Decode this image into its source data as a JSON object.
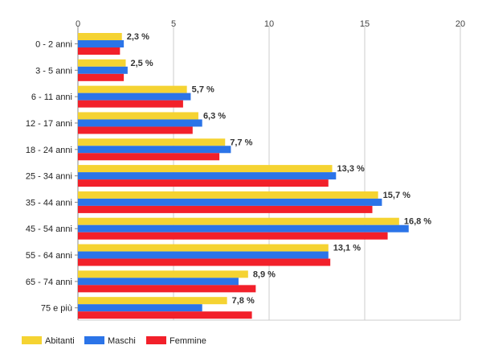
{
  "chart_data": {
    "type": "bar",
    "orientation": "horizontal",
    "categories": [
      "0 - 2 anni",
      "3 - 5 anni",
      "6 - 11 anni",
      "12 - 17 anni",
      "18 - 24 anni",
      "25 - 34 anni",
      "35 - 44 anni",
      "45 - 54 anni",
      "55 - 64 anni",
      "65 - 74 anni",
      "75 e più"
    ],
    "series": [
      {
        "name": "Abitanti",
        "color": "#f5d332",
        "values": [
          2.3,
          2.5,
          5.7,
          6.3,
          7.7,
          13.3,
          15.7,
          16.8,
          13.1,
          8.9,
          7.8
        ]
      },
      {
        "name": "Maschi",
        "color": "#2b74e8",
        "values": [
          2.4,
          2.6,
          5.9,
          6.5,
          8.0,
          13.5,
          15.9,
          17.3,
          13.1,
          8.4,
          6.5
        ]
      },
      {
        "name": "Femmine",
        "color": "#f2202a",
        "values": [
          2.2,
          2.4,
          5.5,
          6.0,
          7.4,
          13.1,
          15.4,
          16.2,
          13.2,
          9.3,
          9.1
        ]
      }
    ],
    "data_labels": [
      "2,3 %",
      "2,5 %",
      "5,7 %",
      "6,3 %",
      "7,7 %",
      "13,3 %",
      "15,7 %",
      "16,8 %",
      "13,1 %",
      "8,9 %",
      "7,8 %"
    ],
    "x_ticks": [
      "0",
      "5",
      "10",
      "15",
      "20"
    ],
    "xlim": [
      0,
      20
    ],
    "title": "",
    "xlabel": "",
    "ylabel": "",
    "grid": true,
    "axis_position": "top",
    "legend_position": "bottom-left",
    "gridline_color": "#cccccc"
  }
}
